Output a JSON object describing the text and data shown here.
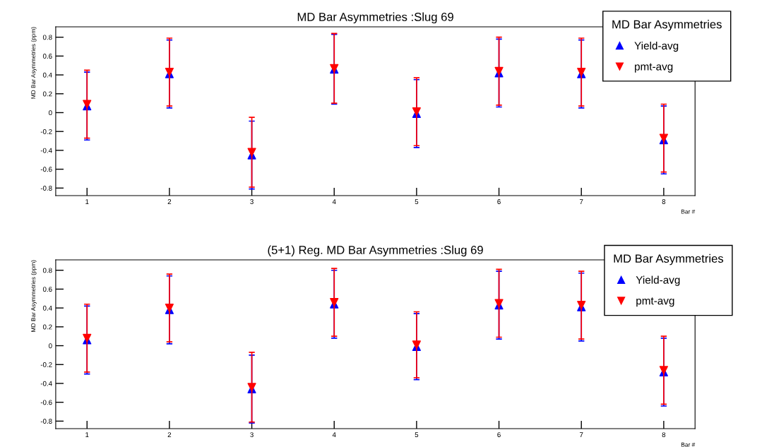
{
  "chart_data": [
    {
      "type": "scatter",
      "title": "MD Bar Asymmetries :Slug 69",
      "xlabel": "Bar #",
      "ylabel": "MD Bar Asymmetries (ppm)",
      "legend_title": "MD Bar Asymmetries",
      "legend": "top right",
      "grid": false,
      "x": [
        1,
        2,
        3,
        4,
        5,
        6,
        7,
        8
      ],
      "xlim": [
        0.62,
        8.38
      ],
      "xticks": [
        1,
        2,
        3,
        4,
        5,
        6,
        7,
        8
      ],
      "ylim": [
        -0.88,
        0.91
      ],
      "yticks": [
        -0.8,
        -0.6,
        -0.4,
        -0.2,
        0,
        0.2,
        0.4,
        0.6,
        0.8
      ],
      "series": [
        {
          "name": "Yield-avg",
          "color": "#0000ff",
          "marker": "triangle",
          "values": [
            0.07,
            0.41,
            -0.45,
            0.46,
            -0.01,
            0.42,
            0.41,
            -0.29
          ],
          "errors": [
            0.36,
            0.36,
            0.36,
            0.37,
            0.36,
            0.36,
            0.36,
            0.36
          ]
        },
        {
          "name": "pmt-avg",
          "color": "#ff0000",
          "values": [
            0.09,
            0.43,
            -0.42,
            0.47,
            0.01,
            0.44,
            0.43,
            -0.27
          ],
          "errors": [
            0.36,
            0.36,
            0.37,
            0.37,
            0.36,
            0.36,
            0.36,
            0.36
          ]
        }
      ]
    },
    {
      "type": "scatter",
      "title": "(5+1) Reg. MD Bar Asymmetries :Slug 69",
      "xlabel": "Bar #",
      "ylabel": "MD Bar Asymmetries (ppm)",
      "legend_title": "MD Bar Asymmetries",
      "legend": "top right",
      "grid": false,
      "x": [
        1,
        2,
        3,
        4,
        5,
        6,
        7,
        8
      ],
      "xlim": [
        0.62,
        8.38
      ],
      "xticks": [
        1,
        2,
        3,
        4,
        5,
        6,
        7,
        8
      ],
      "ylim": [
        -0.88,
        0.91
      ],
      "yticks": [
        -0.8,
        -0.6,
        -0.4,
        -0.2,
        0,
        0.2,
        0.4,
        0.6,
        0.8
      ],
      "series": [
        {
          "name": "Yield-avg",
          "color": "#0000ff",
          "marker": "triangle",
          "values": [
            0.06,
            0.38,
            -0.46,
            0.44,
            -0.01,
            0.43,
            0.41,
            -0.28
          ],
          "errors": [
            0.36,
            0.36,
            0.36,
            0.36,
            0.35,
            0.36,
            0.36,
            0.36
          ]
        },
        {
          "name": "pmt-avg",
          "color": "#ff0000",
          "values": [
            0.08,
            0.4,
            -0.44,
            0.46,
            0.01,
            0.45,
            0.43,
            -0.26
          ],
          "errors": [
            0.36,
            0.36,
            0.37,
            0.36,
            0.35,
            0.36,
            0.36,
            0.36
          ]
        }
      ]
    }
  ]
}
